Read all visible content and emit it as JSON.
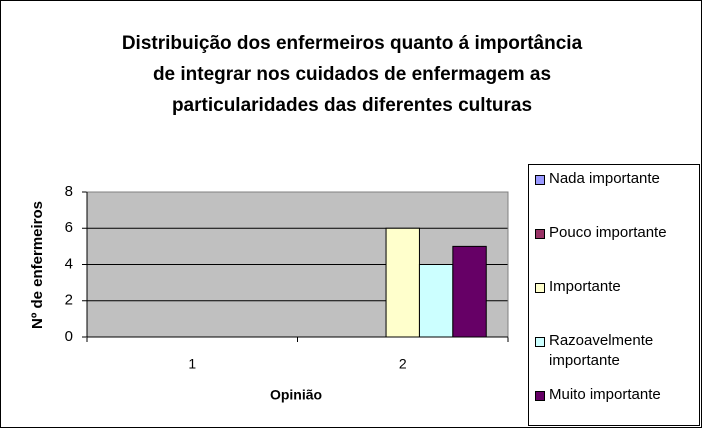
{
  "chart_data": {
    "type": "bar",
    "title": "Distribuição dos enfermeiros quanto á importância de integrar nos cuidados de enfermagem as particularidades das diferentes culturas",
    "x_label": "Opinião",
    "y_label": "Nº de enfermeiros",
    "categories": [
      "1",
      "2"
    ],
    "series": [
      {
        "name": "Nada importante",
        "color": "#9999ff",
        "values": [
          0,
          0
        ]
      },
      {
        "name": "Pouco importante",
        "color": "#993366",
        "values": [
          0,
          0
        ]
      },
      {
        "name": "Importante",
        "color": "#ffffcc",
        "values": [
          0,
          6
        ]
      },
      {
        "name": "Razoavelmente importante",
        "color": "#ccffff",
        "values": [
          0,
          4
        ]
      },
      {
        "name": "Muito importante",
        "color": "#660066",
        "values": [
          0,
          5
        ]
      }
    ],
    "ylim": [
      0,
      8
    ],
    "yticks": [
      0,
      2,
      4,
      6,
      8
    ],
    "grid": true,
    "legend": "right"
  }
}
